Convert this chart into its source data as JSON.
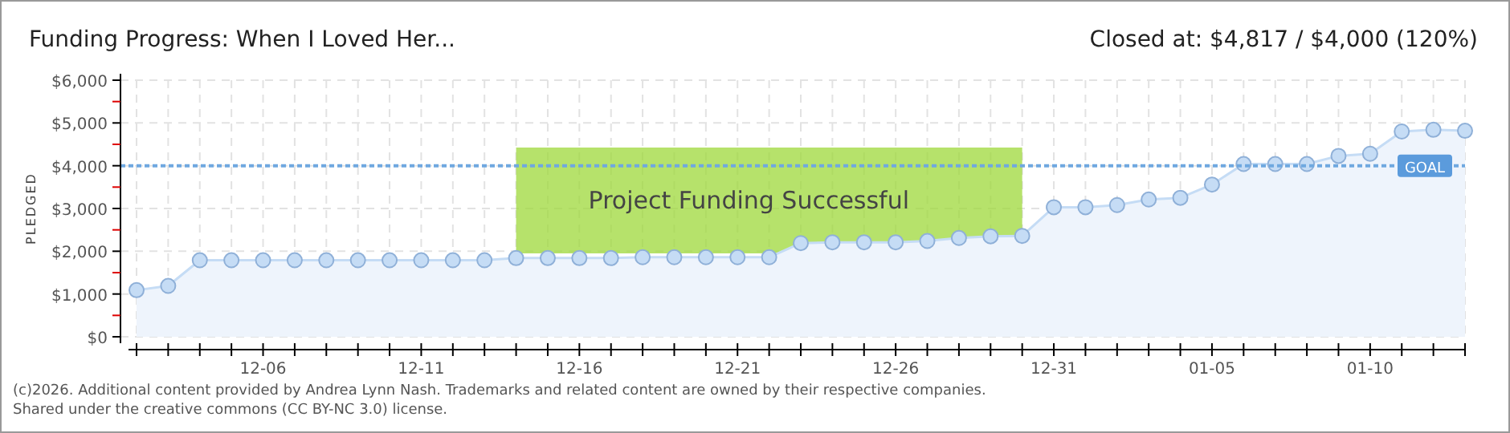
{
  "chart_data": {
    "type": "area",
    "title": "Funding Progress: When I Loved Her...",
    "subtitle": "Closed at:  $4,817 /  $4,000 (120%)",
    "ylabel": "PLEDGED",
    "x": [
      "2025-12-02",
      "2025-12-03",
      "2025-12-04",
      "2025-12-05",
      "2025-12-06",
      "2025-12-07",
      "2025-12-08",
      "2025-12-09",
      "2025-12-10",
      "2025-12-11",
      "2025-12-12",
      "2025-12-13",
      "2025-12-14",
      "2025-12-15",
      "2025-12-16",
      "2025-12-17",
      "2025-12-18",
      "2025-12-19",
      "2025-12-20",
      "2025-12-21",
      "2025-12-22",
      "2025-12-23",
      "2025-12-24",
      "2025-12-25",
      "2025-12-26",
      "2025-12-27",
      "2025-12-28",
      "2025-12-29",
      "2025-12-30",
      "2025-12-31",
      "2026-01-01",
      "2026-01-02",
      "2026-01-03",
      "2026-01-04",
      "2026-01-05",
      "2026-01-06",
      "2026-01-07",
      "2026-01-08",
      "2026-01-09",
      "2026-01-10",
      "2026-01-11",
      "2026-01-12",
      "2026-01-13"
    ],
    "series": [
      {
        "color": "#c5dcf5",
        "values": [
          1090,
          1190,
          1790,
          1790,
          1790,
          1790,
          1790,
          1790,
          1790,
          1790,
          1790,
          1790,
          1840,
          1840,
          1840,
          1840,
          1860,
          1860,
          1860,
          1860,
          1860,
          2190,
          2210,
          2210,
          2210,
          2240,
          2310,
          2350,
          2360,
          3030,
          3030,
          3080,
          3210,
          3250,
          3560,
          4040,
          4040,
          4040,
          4230,
          4280,
          4800,
          4840,
          4817
        ]
      }
    ],
    "marker": "circle",
    "grid": true,
    "ylim": [
      0,
      6000
    ],
    "yticks": [
      {
        "value": 0,
        "label": "$0"
      },
      {
        "value": 500,
        "label": null
      },
      {
        "value": 1000,
        "label": "$1,000"
      },
      {
        "value": 1500,
        "label": null
      },
      {
        "value": 2000,
        "label": "$2,000"
      },
      {
        "value": 2500,
        "label": null
      },
      {
        "value": 3000,
        "label": "$3,000"
      },
      {
        "value": 3500,
        "label": null
      },
      {
        "value": 4000,
        "label": "$4,000"
      },
      {
        "value": 4500,
        "label": null
      },
      {
        "value": 5000,
        "label": "$5,000"
      },
      {
        "value": 5500,
        "label": null
      },
      {
        "value": 6000,
        "label": "$6,000"
      }
    ],
    "xlim": [
      "2025-12-02",
      "2026-01-13"
    ],
    "xticks": [
      {
        "value": "2025-12-02",
        "label": null
      },
      {
        "value": "2025-12-03",
        "label": null
      },
      {
        "value": "2025-12-04",
        "label": null
      },
      {
        "value": "2025-12-05",
        "label": null
      },
      {
        "value": "2025-12-06",
        "label": "12-06"
      },
      {
        "value": "2025-12-07",
        "label": null
      },
      {
        "value": "2025-12-08",
        "label": null
      },
      {
        "value": "2025-12-09",
        "label": null
      },
      {
        "value": "2025-12-10",
        "label": null
      },
      {
        "value": "2025-12-11",
        "label": "12-11"
      },
      {
        "value": "2025-12-12",
        "label": null
      },
      {
        "value": "2025-12-13",
        "label": null
      },
      {
        "value": "2025-12-14",
        "label": null
      },
      {
        "value": "2025-12-15",
        "label": null
      },
      {
        "value": "2025-12-16",
        "label": "12-16"
      },
      {
        "value": "2025-12-17",
        "label": null
      },
      {
        "value": "2025-12-18",
        "label": null
      },
      {
        "value": "2025-12-19",
        "label": null
      },
      {
        "value": "2025-12-20",
        "label": null
      },
      {
        "value": "2025-12-21",
        "label": "12-21"
      },
      {
        "value": "2025-12-22",
        "label": null
      },
      {
        "value": "2025-12-23",
        "label": null
      },
      {
        "value": "2025-12-24",
        "label": null
      },
      {
        "value": "2025-12-25",
        "label": null
      },
      {
        "value": "2025-12-26",
        "label": "12-26"
      },
      {
        "value": "2025-12-27",
        "label": null
      },
      {
        "value": "2025-12-28",
        "label": null
      },
      {
        "value": "2025-12-29",
        "label": null
      },
      {
        "value": "2025-12-30",
        "label": null
      },
      {
        "value": "2025-12-31",
        "label": "12-31"
      },
      {
        "value": "2026-01-01",
        "label": null
      },
      {
        "value": "2026-01-02",
        "label": null
      },
      {
        "value": "2026-01-03",
        "label": null
      },
      {
        "value": "2026-01-04",
        "label": null
      },
      {
        "value": "2026-01-05",
        "label": "01-05"
      },
      {
        "value": "2026-01-06",
        "label": null
      },
      {
        "value": "2026-01-07",
        "label": null
      },
      {
        "value": "2026-01-08",
        "label": null
      },
      {
        "value": "2026-01-09",
        "label": null
      },
      {
        "value": "2026-01-10",
        "label": "01-10"
      },
      {
        "value": "2026-01-11",
        "label": null
      },
      {
        "value": "2026-01-12",
        "label": null
      },
      {
        "value": "2026-01-13",
        "label": null
      }
    ],
    "ref_lines": [
      {
        "axis": "y",
        "value": 4000,
        "label": "GOAL",
        "color": "#6fa8e0",
        "line_style": "dotted"
      }
    ],
    "annotations": [
      "Project Funding Successful",
      "(c)2026. Additional content provided by Andrea Lynn Nash. Trademarks and related content are owned by their respective companies.",
      "Shared under the creative commons (CC BY-NC 3.0) license."
    ]
  }
}
